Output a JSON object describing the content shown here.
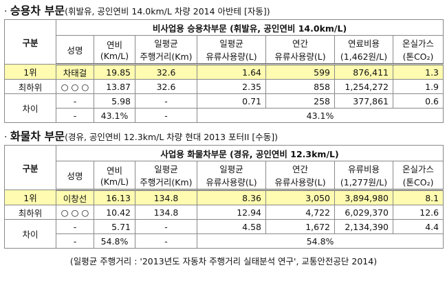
{
  "sections": [
    {
      "heading": {
        "bold": "승용차 부문",
        "rest": "(휘발유, 공인연비 14.0km/L 차량 2014 아반테 [자동])"
      },
      "table": {
        "corner": "구분",
        "group_header": "비사업용 승용차부문 (휘발유, 공인연비 14.0km/L)",
        "name_header": "성명",
        "columns": [
          [
            "연비",
            "(Km/L)"
          ],
          [
            "일평균",
            "주행거리(Km)"
          ],
          [
            "일평균",
            "유류사용량(L)"
          ],
          [
            "연간",
            "유류사용량(L)"
          ],
          [
            "연료비용",
            "(1,462원/L)"
          ],
          [
            "온실가스",
            "(톤CO₂)"
          ]
        ],
        "rows": [
          [
            "1위",
            "차태걸",
            "19.85",
            "32.6",
            "1.64",
            "599",
            "876,411",
            "1.3"
          ],
          [
            "최하위",
            "○ ○ ○",
            "13.87",
            "32.6",
            "2.35",
            "858",
            "1,254,272",
            "1.9"
          ],
          [
            "차이",
            "-",
            "5.98",
            "-",
            "0.71",
            "258",
            "377,861",
            "0.6"
          ],
          [
            "-",
            "43.1%",
            "-",
            "43.1%"
          ]
        ]
      }
    },
    {
      "heading": {
        "bold": "화물차 부문",
        "rest": "(경유, 공인연비 12.3km/L 차량 현대 2013 포터II [수동])"
      },
      "table": {
        "corner": "구분",
        "group_header": "사업용 화물차부문 (경유, 공인연비 12.3km/L)",
        "name_header": "성명",
        "columns": [
          [
            "연비",
            "(Km/L)"
          ],
          [
            "일평균",
            "주행거리(Km)"
          ],
          [
            "일평균",
            "유류사용량(L)"
          ],
          [
            "연간",
            "유류사용량(L)"
          ],
          [
            "유류비용",
            "(1,277원/L)"
          ],
          [
            "온실가스",
            "(톤CO₂)"
          ]
        ],
        "rows": [
          [
            "1위",
            "이창선",
            "16.13",
            "134.8",
            "8.36",
            "3,050",
            "3,894,980",
            "8.1"
          ],
          [
            "최하위",
            "○ ○ ○",
            "10.42",
            "134.8",
            "12.94",
            "4,722",
            "6,029,370",
            "12.6"
          ],
          [
            "차이",
            "-",
            "5.71",
            "-",
            "4.58",
            "1,672",
            "2,134,390",
            "4.4"
          ],
          [
            "-",
            "54.8%",
            "-",
            "54.8%"
          ]
        ]
      }
    }
  ],
  "footnote": "(일평균 주행거리 : '2013년도 자동차 주행거리 실태분석 연구', 교통안전공단 2014)"
}
